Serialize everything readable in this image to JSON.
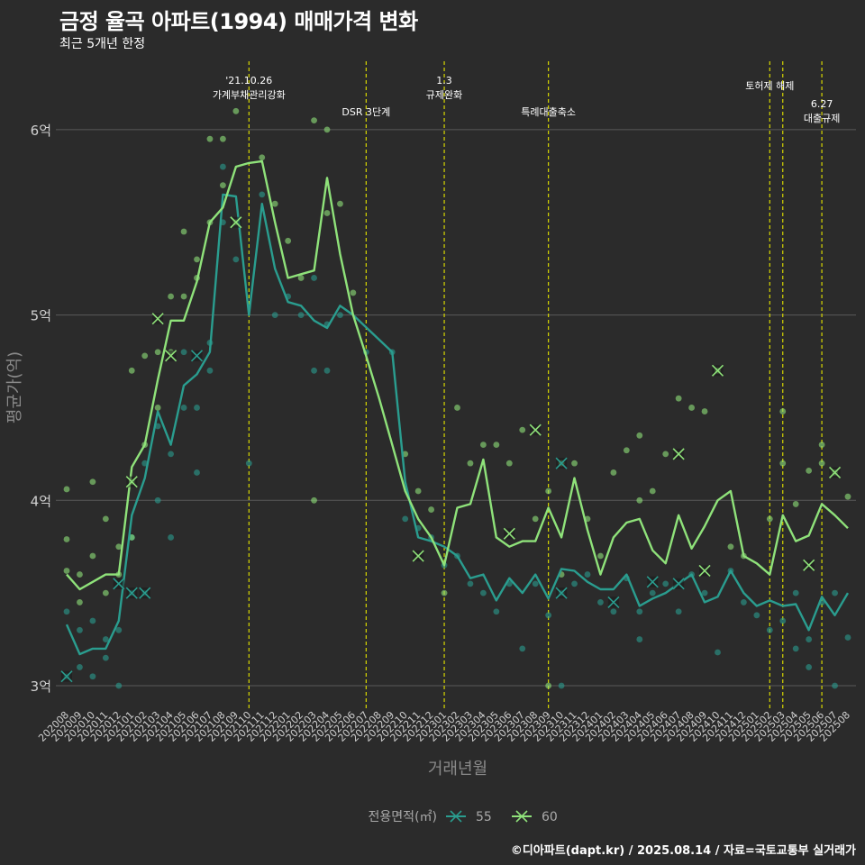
{
  "header": {
    "title": "금정 율곡 아파트(1994) 매매가격 변화",
    "subtitle": "최근 5개년 한정"
  },
  "footer": {
    "caption": "©디아파트(dapt.kr) / 2025.08.14 / 자료=국토교통부 실거래가"
  },
  "chart_data": {
    "type": "line",
    "xlabel": "거래년월",
    "ylabel": "평균가(억)",
    "ylim": [
      2.88,
      6.35
    ],
    "yticks": [
      {
        "value": 3,
        "label": "3억"
      },
      {
        "value": 4,
        "label": "4억"
      },
      {
        "value": 5,
        "label": "5억"
      },
      {
        "value": 6,
        "label": "6억"
      }
    ],
    "categories": [
      "202008",
      "202009",
      "202010",
      "202011",
      "202012",
      "202101",
      "202102",
      "202103",
      "202104",
      "202105",
      "202106",
      "202107",
      "202108",
      "202109",
      "202110",
      "202111",
      "202112",
      "202201",
      "202202",
      "202203",
      "202204",
      "202205",
      "202206",
      "202207",
      "202208",
      "202209",
      "202210",
      "202211",
      "202212",
      "202301",
      "202302",
      "202303",
      "202304",
      "202305",
      "202306",
      "202307",
      "202308",
      "202309",
      "202310",
      "202311",
      "202312",
      "202401",
      "202402",
      "202403",
      "202404",
      "202405",
      "202406",
      "202407",
      "202408",
      "202409",
      "202410",
      "202411",
      "202412",
      "202501",
      "202502",
      "202503",
      "202504",
      "202505",
      "202506",
      "202507",
      "202508"
    ],
    "legend": {
      "title": "전용면적(㎡)",
      "position": "bottom"
    },
    "colors": {
      "55": "#2a9d8f",
      "60": "#8fe27a",
      "vline": "#d8d800",
      "grid": "#5a5a5a",
      "background": "#2b2b2b"
    },
    "series": [
      {
        "name": "55",
        "color": "#2a9d8f",
        "values": [
          3.33,
          3.17,
          3.2,
          3.2,
          3.35,
          3.92,
          4.12,
          4.48,
          4.3,
          4.62,
          4.68,
          4.8,
          5.65,
          5.64,
          5.0,
          5.6,
          5.25,
          5.07,
          5.05,
          4.97,
          4.93,
          5.05,
          5.0,
          null,
          null,
          4.8,
          4.1,
          3.8,
          3.78,
          3.75,
          3.7,
          3.58,
          3.6,
          3.46,
          3.58,
          3.5,
          3.6,
          3.47,
          3.63,
          3.62,
          3.56,
          3.52,
          3.52,
          3.6,
          3.43,
          3.47,
          3.5,
          3.55,
          3.6,
          3.45,
          3.48,
          3.62,
          3.5,
          3.43,
          3.46,
          3.43,
          3.44,
          3.3,
          3.48,
          3.38,
          3.5
        ]
      },
      {
        "name": "60",
        "color": "#8fe27a",
        "values": [
          3.6,
          3.52,
          3.56,
          3.6,
          3.6,
          4.18,
          4.3,
          4.65,
          4.97,
          4.97,
          5.18,
          5.5,
          5.58,
          5.8,
          5.82,
          5.83,
          5.5,
          5.2,
          5.22,
          5.24,
          5.74,
          5.33,
          5.0,
          4.78,
          4.55,
          4.3,
          4.05,
          3.9,
          3.8,
          3.65,
          3.96,
          3.98,
          4.22,
          3.8,
          3.75,
          3.78,
          3.78,
          3.96,
          3.8,
          4.12,
          3.84,
          3.6,
          3.8,
          3.88,
          3.9,
          3.73,
          3.66,
          3.92,
          3.74,
          3.86,
          4.0,
          4.05,
          3.7,
          3.66,
          3.6,
          3.92,
          3.78,
          3.81,
          3.98,
          3.92,
          3.85
        ]
      }
    ],
    "points": {
      "55": [
        [
          0,
          3.05
        ],
        [
          0,
          3.4
        ],
        [
          1,
          3.3
        ],
        [
          1,
          3.1
        ],
        [
          2,
          3.35
        ],
        [
          2,
          3.05
        ],
        [
          3,
          3.25
        ],
        [
          3,
          3.15
        ],
        [
          4,
          3.0
        ],
        [
          4,
          3.3
        ],
        [
          5,
          3.8
        ],
        [
          5,
          3.5
        ],
        [
          6,
          4.2
        ],
        [
          6,
          3.5
        ],
        [
          7,
          4.4
        ],
        [
          7,
          4.0
        ],
        [
          8,
          4.25
        ],
        [
          8,
          3.8
        ],
        [
          9,
          4.8
        ],
        [
          9,
          4.5
        ],
        [
          10,
          4.5
        ],
        [
          10,
          4.15
        ],
        [
          11,
          4.7
        ],
        [
          11,
          4.85
        ],
        [
          12,
          5.8
        ],
        [
          12,
          5.5
        ],
        [
          13,
          5.3
        ],
        [
          14,
          4.2
        ],
        [
          15,
          5.65
        ],
        [
          16,
          5.0
        ],
        [
          17,
          5.1
        ],
        [
          18,
          5.0
        ],
        [
          19,
          5.2
        ],
        [
          19,
          4.7
        ],
        [
          20,
          4.95
        ],
        [
          20,
          4.7
        ],
        [
          21,
          5.0
        ],
        [
          23,
          4.8
        ],
        [
          25,
          4.8
        ],
        [
          26,
          3.9
        ],
        [
          27,
          3.85
        ],
        [
          28,
          3.8
        ],
        [
          29,
          3.65
        ],
        [
          30,
          3.7
        ],
        [
          31,
          3.55
        ],
        [
          32,
          3.5
        ],
        [
          33,
          3.4
        ],
        [
          34,
          3.55
        ],
        [
          35,
          3.2
        ],
        [
          36,
          3.55
        ],
        [
          37,
          3.38
        ],
        [
          38,
          3.0
        ],
        [
          38,
          3.5
        ],
        [
          39,
          3.55
        ],
        [
          40,
          3.6
        ],
        [
          41,
          3.45
        ],
        [
          42,
          3.4
        ],
        [
          43,
          3.58
        ],
        [
          44,
          3.25
        ],
        [
          44,
          3.4
        ],
        [
          45,
          3.5
        ],
        [
          46,
          3.55
        ],
        [
          47,
          3.4
        ],
        [
          48,
          3.6
        ],
        [
          49,
          3.5
        ],
        [
          50,
          3.18
        ],
        [
          51,
          3.62
        ],
        [
          52,
          3.45
        ],
        [
          53,
          3.38
        ],
        [
          54,
          3.3
        ],
        [
          55,
          3.35
        ],
        [
          56,
          3.2
        ],
        [
          56,
          3.5
        ],
        [
          57,
          3.1
        ],
        [
          57,
          3.25
        ],
        [
          58,
          3.45
        ],
        [
          59,
          3.0
        ],
        [
          59,
          3.5
        ],
        [
          60,
          3.26
        ]
      ],
      "60": [
        [
          0,
          4.06
        ],
        [
          0,
          3.79
        ],
        [
          0,
          3.62
        ],
        [
          1,
          3.6
        ],
        [
          1,
          3.45
        ],
        [
          2,
          4.1
        ],
        [
          2,
          3.7
        ],
        [
          3,
          3.9
        ],
        [
          3,
          3.5
        ],
        [
          4,
          3.75
        ],
        [
          4,
          3.6
        ],
        [
          5,
          4.7
        ],
        [
          5,
          4.1
        ],
        [
          5,
          3.8
        ],
        [
          6,
          4.78
        ],
        [
          6,
          4.3
        ],
        [
          7,
          4.8
        ],
        [
          7,
          4.5
        ],
        [
          8,
          5.1
        ],
        [
          8,
          4.8
        ],
        [
          9,
          5.45
        ],
        [
          9,
          5.1
        ],
        [
          10,
          5.3
        ],
        [
          10,
          5.2
        ],
        [
          11,
          5.95
        ],
        [
          11,
          5.5
        ],
        [
          12,
          5.95
        ],
        [
          12,
          5.7
        ],
        [
          13,
          6.1
        ],
        [
          13,
          5.5
        ],
        [
          15,
          5.85
        ],
        [
          16,
          5.6
        ],
        [
          17,
          5.4
        ],
        [
          18,
          5.2
        ],
        [
          19,
          6.05
        ],
        [
          19,
          4.0
        ],
        [
          20,
          6.0
        ],
        [
          20,
          5.55
        ],
        [
          21,
          5.6
        ],
        [
          22,
          5.12
        ],
        [
          26,
          4.25
        ],
        [
          27,
          4.05
        ],
        [
          28,
          3.95
        ],
        [
          29,
          3.5
        ],
        [
          30,
          4.5
        ],
        [
          31,
          4.2
        ],
        [
          32,
          4.3
        ],
        [
          33,
          4.3
        ],
        [
          34,
          4.2
        ],
        [
          35,
          4.38
        ],
        [
          36,
          3.9
        ],
        [
          37,
          4.05
        ],
        [
          37,
          3.0
        ],
        [
          38,
          4.2
        ],
        [
          38,
          3.6
        ],
        [
          39,
          4.2
        ],
        [
          40,
          3.9
        ],
        [
          41,
          3.7
        ],
        [
          42,
          4.15
        ],
        [
          43,
          4.27
        ],
        [
          44,
          4.35
        ],
        [
          44,
          4.0
        ],
        [
          45,
          4.05
        ],
        [
          46,
          4.25
        ],
        [
          47,
          4.55
        ],
        [
          48,
          4.5
        ],
        [
          49,
          4.48
        ],
        [
          50,
          4.7
        ],
        [
          51,
          3.75
        ],
        [
          52,
          3.7
        ],
        [
          54,
          3.9
        ],
        [
          55,
          4.48
        ],
        [
          55,
          4.2
        ],
        [
          56,
          3.98
        ],
        [
          57,
          4.16
        ],
        [
          58,
          4.3
        ],
        [
          58,
          4.2
        ],
        [
          59,
          4.15
        ],
        [
          60,
          4.02
        ]
      ],
      "cross": [
        [
          0,
          3.05,
          "55"
        ],
        [
          4,
          3.55,
          "55"
        ],
        [
          5,
          4.1,
          "60"
        ],
        [
          5,
          3.5,
          "55"
        ],
        [
          6,
          3.5,
          "55"
        ],
        [
          7,
          4.98,
          "60"
        ],
        [
          8,
          4.78,
          "60"
        ],
        [
          10,
          4.78,
          "55"
        ],
        [
          13,
          5.5,
          "60"
        ],
        [
          27,
          3.7,
          "60"
        ],
        [
          34,
          3.82,
          "60"
        ],
        [
          36,
          4.38,
          "60"
        ],
        [
          38,
          4.2,
          "55"
        ],
        [
          38,
          3.5,
          "55"
        ],
        [
          42,
          3.45,
          "55"
        ],
        [
          45,
          3.56,
          "55"
        ],
        [
          47,
          4.25,
          "60"
        ],
        [
          47,
          3.55,
          "55"
        ],
        [
          49,
          3.62,
          "60"
        ],
        [
          50,
          4.7,
          "60"
        ],
        [
          57,
          3.65,
          "60"
        ],
        [
          59,
          4.15,
          "60"
        ]
      ]
    },
    "vlines": [
      {
        "x": 14.0,
        "label": "'21.10.26\n가계부채관리강화",
        "label_level": 0
      },
      {
        "x": 23.0,
        "label": "DSR 3단계",
        "label_level": 2
      },
      {
        "x": 29.0,
        "label": "1.3\n규제완화",
        "label_level": 0
      },
      {
        "x": 37.0,
        "label": "특례대출축소",
        "label_level": 2
      },
      {
        "x": 54.0,
        "label": "토허제 해제",
        "label_level": 1
      },
      {
        "x": 55.0,
        "label": "",
        "label_level": 1
      },
      {
        "x": 58.0,
        "label": "6.27\n대출규제",
        "label_level": 3
      }
    ]
  }
}
